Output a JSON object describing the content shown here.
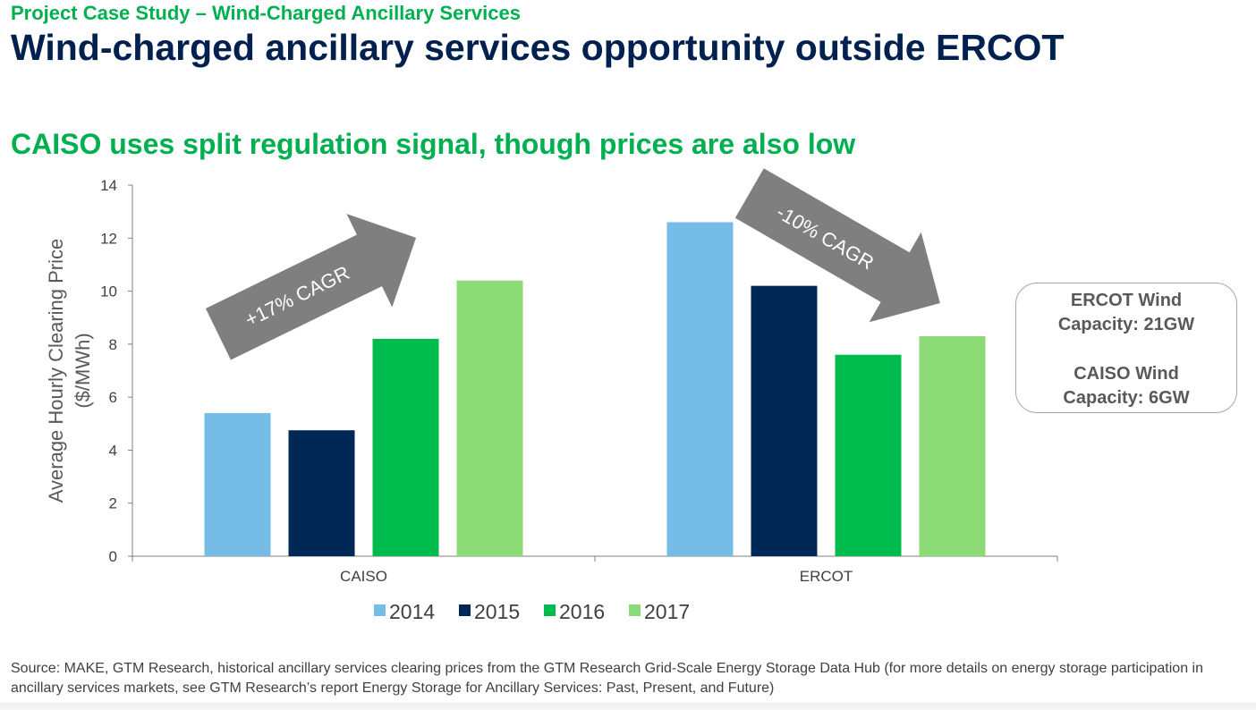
{
  "header": {
    "eyebrow": "Project Case Study – Wind-Charged Ancillary Services",
    "title": "Wind-charged ancillary services opportunity outside ERCOT",
    "subtitle": "CAISO uses split regulation signal, though prices are also low"
  },
  "chart_data": {
    "type": "bar",
    "categories": [
      "CAISO",
      "ERCOT"
    ],
    "series": [
      {
        "name": "2014",
        "color": "#75bde7",
        "values": [
          5.4,
          12.6
        ]
      },
      {
        "name": "2015",
        "color": "#002856",
        "values": [
          4.75,
          10.2
        ]
      },
      {
        "name": "2016",
        "color": "#00bc4e",
        "values": [
          8.2,
          7.6
        ]
      },
      {
        "name": "2017",
        "color": "#8cdb77",
        "values": [
          10.4,
          8.3
        ]
      }
    ],
    "ylabel_lines": [
      "Average Hourly Clearing Price",
      "($/MWh)"
    ],
    "ylim": [
      0,
      14
    ],
    "yticks": [
      0,
      2,
      4,
      6,
      8,
      10,
      12,
      14
    ],
    "legend_position": "bottom",
    "annotations": [
      {
        "text": "+17% CAGR",
        "direction": "up",
        "color": "#7f7f7f"
      },
      {
        "text": "-10% CAGR",
        "direction": "down",
        "color": "#7f7f7f"
      }
    ]
  },
  "callout": {
    "ercot_line1": "ERCOT Wind",
    "ercot_line2": "Capacity: 21GW",
    "caiso_line1": "CAISO Wind",
    "caiso_line2": "Capacity: 6GW"
  },
  "footer": {
    "source": "Source: MAKE, GTM Research, historical ancillary services clearing prices from the GTM Research Grid-Scale Energy Storage Data Hub (for more details on energy storage participation in ancillary services markets, see GTM Research’s report Energy Storage for Ancillary Services: Past, Present, and Future)"
  }
}
